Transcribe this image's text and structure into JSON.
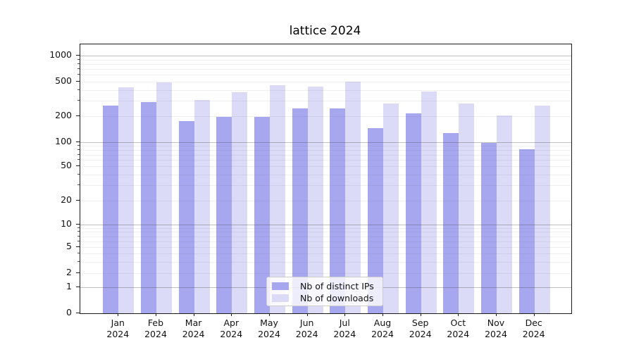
{
  "title": "lattice 2024",
  "colors": {
    "distinct_ips": "#a7a7f0",
    "downloads": "#dbdbf7",
    "grid_major": "rgba(60,60,60,0.32)",
    "grid_minor": "rgba(60,60,60,0.08)",
    "axis": "#1a1a1a",
    "background": "#ffffff"
  },
  "chart_data": {
    "type": "bar",
    "title": "lattice 2024",
    "categories": [
      "Jan 2024",
      "Feb 2024",
      "Mar 2024",
      "Apr 2024",
      "May 2024",
      "Jun 2024",
      "Jul 2024",
      "Aug 2024",
      "Sep 2024",
      "Oct 2024",
      "Nov 2024",
      "Dec 2024"
    ],
    "series": [
      {
        "name": "Nb of distinct IPs",
        "values": [
          266,
          293,
          174,
          196,
          195,
          246,
          248,
          145,
          214,
          127,
          99,
          82
        ]
      },
      {
        "name": "Nb of downloads",
        "values": [
          434,
          487,
          307,
          376,
          456,
          438,
          504,
          281,
          387,
          279,
          203,
          264
        ]
      }
    ],
    "xlabel": "",
    "ylabel": "",
    "yscale": "symlog (linear 0-1, log above 1)",
    "yticks": [
      0,
      1,
      2,
      5,
      10,
      20,
      50,
      100,
      200,
      500,
      1000
    ],
    "ylim": [
      0,
      1400
    ],
    "grid": true,
    "legend_position": "lower center"
  }
}
